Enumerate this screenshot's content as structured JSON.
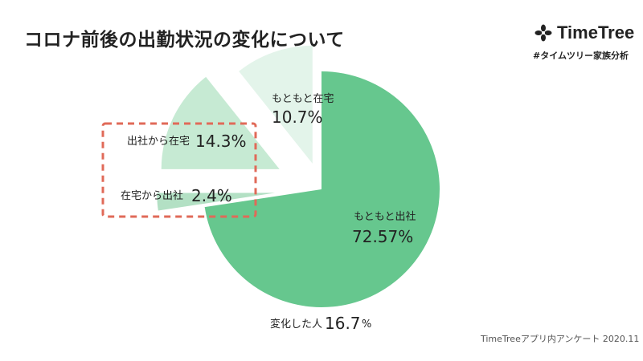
{
  "title": "コロナ前後の出勤状況の変化について",
  "logo": {
    "text": "TimeTree",
    "icon": "timetree-clover-icon"
  },
  "hashtag": "#タイムツリー家族分析",
  "footnote": "TimeTreeアプリ内アンケート 2020.11",
  "colors": {
    "office_office": "#66c78e",
    "home_office": "#b3e0c4",
    "office_home": "#c6ead3",
    "home_home": "#e3f4ea",
    "dashed_box": "#e06a58",
    "text": "#222222"
  },
  "chart_data": {
    "type": "pie",
    "title": "コロナ前後の出勤状況の変化について",
    "slices": [
      {
        "label": "もともと出社",
        "value": 72.57,
        "value_label": "72.57%"
      },
      {
        "label": "在宅から出社",
        "value": 2.4,
        "value_label": "2.4%"
      },
      {
        "label": "出社から在宅",
        "value": 14.3,
        "value_label": "14.3%"
      },
      {
        "label": "もともと在宅",
        "value": 10.7,
        "value_label": "10.7%"
      }
    ],
    "annotation": {
      "label": "変化した人",
      "value": "16.7",
      "unit": "%"
    }
  }
}
